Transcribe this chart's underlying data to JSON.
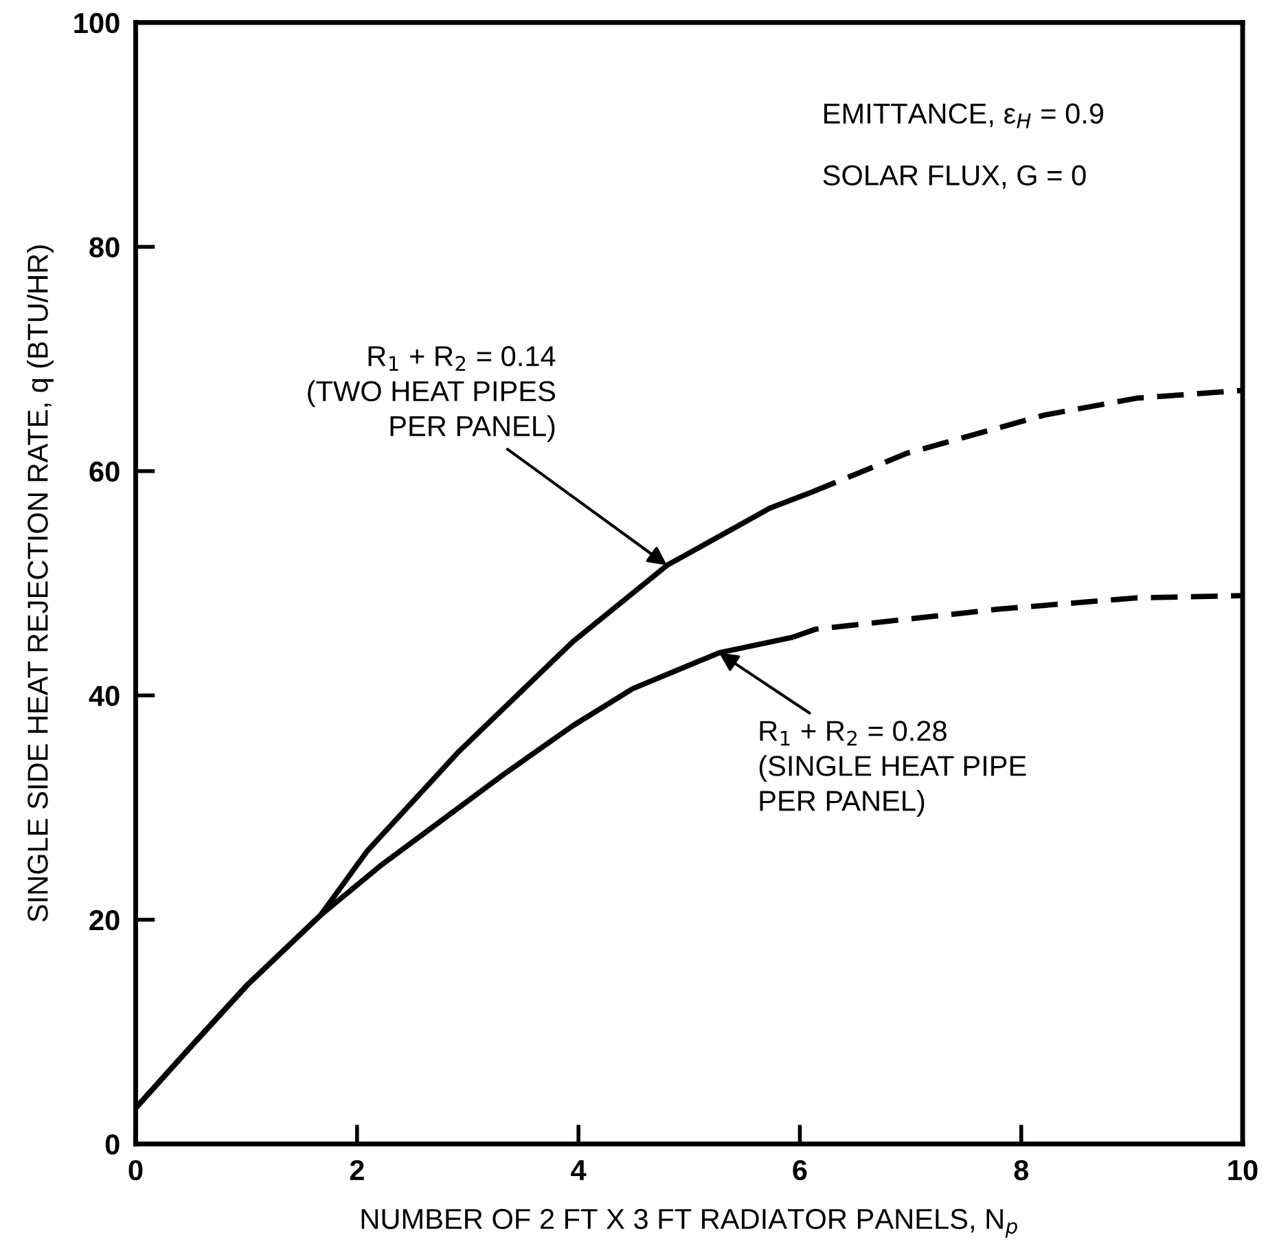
{
  "chart_data": {
    "type": "line",
    "xlabel": "NUMBER OF 2 FT X 3 FT RADIATOR PANELS, N$_{p}$",
    "ylabel": "SINGLE SIDE HEAT REJECTION RATE, q (BTU/HR)",
    "xlim": [
      0,
      10
    ],
    "ylim": [
      0,
      100
    ],
    "xticks": [
      0,
      2,
      4,
      6,
      8,
      10
    ],
    "yticks": [
      0,
      20,
      40,
      60,
      80,
      100
    ],
    "marker": "none",
    "series": [
      {
        "color": "#000000",
        "line_style": "solid",
        "x": [
          0,
          0.5,
          1.01,
          1.67,
          2.09,
          2.92,
          3.95,
          4.8,
          5.73,
          6.1
        ],
        "values": [
          3.2,
          8.7,
          14.2,
          20.4,
          26.1,
          35.0,
          44.8,
          51.6,
          56.7,
          58.1
        ]
      },
      {
        "color": "#000000",
        "line_style": "dashed",
        "x": [
          6.1,
          6.97,
          8.21,
          9.04,
          10
        ],
        "values": [
          58.1,
          61.6,
          65.0,
          66.5,
          67.2
        ]
      },
      {
        "color": "#000000",
        "line_style": "solid",
        "x": [
          0,
          0.5,
          1.01,
          1.67,
          2.21,
          3.33,
          3.95,
          4.49,
          5.27,
          5.94
        ],
        "values": [
          3.2,
          8.7,
          14.2,
          20.4,
          24.8,
          33.0,
          37.3,
          40.6,
          43.8,
          45.2
        ]
      },
      {
        "color": "#000000",
        "line_style": "dashed",
        "x": [
          5.94,
          6.14,
          7.8,
          9.04,
          10
        ],
        "values": [
          45.2,
          45.9,
          47.7,
          48.7,
          48.9
        ]
      }
    ],
    "annotations": [
      "EMITTANCE, ε$_{H}$ = 0.9",
      "SOLAR FLUX, G = 0",
      {
        "text": "R$_{1}$ + R$_{2}$ = 0.14\n(TWO HEAT PIPES\nPER PANEL)",
        "x": 4.8,
        "y": 51.6
      },
      {
        "text": "R$_{1}$ + R$_{2}$ = 0.28\n(SINGLE HEAT PIPE\nPER PANEL)",
        "x": 5.27,
        "y": 43.8
      }
    ]
  }
}
